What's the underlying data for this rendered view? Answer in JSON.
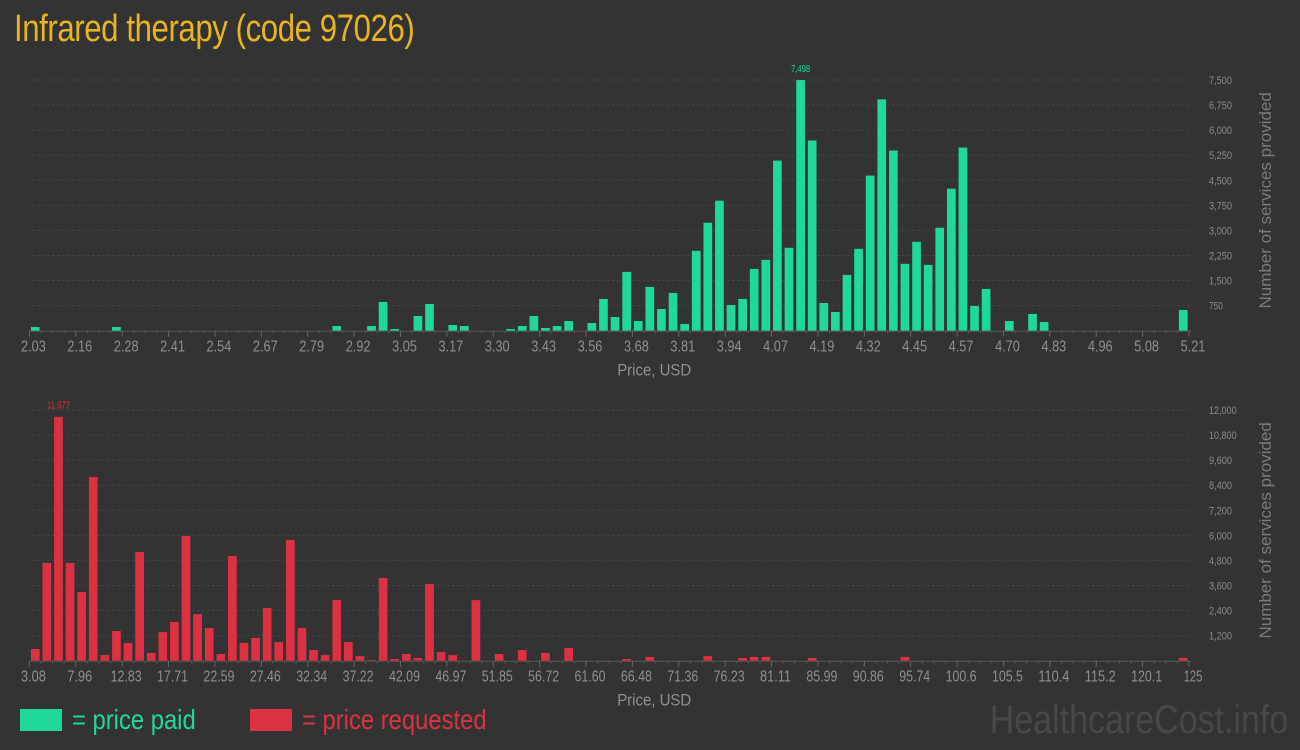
{
  "title": "Infrared therapy (code 97026)",
  "legend": {
    "paid_label": "= price paid",
    "requested_label": "= price requested"
  },
  "watermark": "HealthcareCost.info",
  "colors": {
    "paid": "#1fd899",
    "requested": "#dc3142",
    "title": "#e9b322",
    "background": "#333333"
  },
  "chart_data": [
    {
      "type": "bar",
      "name": "price-paid",
      "xlabel": "Price, USD",
      "ylabel": "Number of services provided",
      "xlim": [
        2.03,
        5.21
      ],
      "bin_count": 100,
      "xtick_labels": [
        "2.03",
        "2.16",
        "2.28",
        "2.41",
        "2.54",
        "2.67",
        "2.79",
        "2.92",
        "3.05",
        "3.17",
        "3.30",
        "3.43",
        "3.56",
        "3.68",
        "3.81",
        "3.94",
        "4.07",
        "4.19",
        "4.32",
        "4.45",
        "4.57",
        "4.70",
        "4.83",
        "4.96",
        "5.08",
        "5.21"
      ],
      "ylim": [
        0,
        7500
      ],
      "yticks": [
        750,
        1500,
        2250,
        3000,
        3750,
        4500,
        5250,
        6000,
        6750,
        7500
      ],
      "ytick_labels": [
        "750",
        "1,500",
        "2,250",
        "3,000",
        "3,750",
        "4,500",
        "5,250",
        "6,000",
        "6,750",
        "7,500"
      ],
      "grid": true,
      "max_label": "7,498",
      "max_bin": 66,
      "values": [
        110,
        0,
        0,
        0,
        0,
        0,
        0,
        110,
        0,
        0,
        0,
        0,
        0,
        0,
        0,
        0,
        0,
        0,
        0,
        0,
        0,
        0,
        0,
        0,
        0,
        0,
        140,
        0,
        0,
        140,
        860,
        50,
        0,
        440,
        800,
        0,
        170,
        140,
        0,
        0,
        0,
        50,
        140,
        440,
        80,
        140,
        290,
        0,
        230,
        950,
        410,
        1760,
        290,
        1310,
        650,
        1130,
        200,
        2390,
        3230,
        3890,
        770,
        950,
        1850,
        2120,
        5090,
        2480,
        7498,
        5690,
        830,
        560,
        1670,
        2450,
        4640,
        6920,
        5390,
        2000,
        2660,
        1970,
        3080,
        4250,
        5480,
        740,
        1250,
        0,
        290,
        0,
        500,
        260,
        0,
        0,
        0,
        0,
        0,
        0,
        0,
        0,
        0,
        0,
        0,
        620
      ]
    },
    {
      "type": "bar",
      "name": "price-requested",
      "xlabel": "Price, USD",
      "ylabel": "Number of services provided",
      "xlim": [
        3.08,
        125
      ],
      "bin_count": 100,
      "xtick_labels": [
        "3.08",
        "7.96",
        "12.83",
        "17.71",
        "22.59",
        "27.46",
        "32.34",
        "37.22",
        "42.09",
        "46.97",
        "51.85",
        "56.72",
        "61.60",
        "66.48",
        "71.36",
        "76.23",
        "81.11",
        "85.99",
        "90.86",
        "95.74",
        "100.6",
        "105.5",
        "110.4",
        "115.2",
        "120.1",
        "125"
      ],
      "ylim": [
        0,
        12000
      ],
      "yticks": [
        1200,
        2400,
        3600,
        4800,
        6000,
        7200,
        8400,
        9600,
        10800,
        12000
      ],
      "ytick_labels": [
        "1,200",
        "2,400",
        "3,600",
        "4,800",
        "6,000",
        "7,200",
        "8,400",
        "9,600",
        "10,800",
        "12,000"
      ],
      "grid": true,
      "max_label": "11,677",
      "max_bin": 2,
      "values": [
        560,
        4680,
        11677,
        4680,
        3290,
        8790,
        270,
        1420,
        850,
        5200,
        370,
        1370,
        1850,
        5970,
        2230,
        1560,
        320,
        5010,
        850,
        1090,
        2520,
        890,
        5780,
        1560,
        510,
        270,
        2900,
        890,
        220,
        30,
        3960,
        80,
        320,
        130,
        3670,
        410,
        270,
        0,
        2900,
        0,
        320,
        0,
        510,
        0,
        370,
        0,
        610,
        0,
        0,
        0,
        0,
        80,
        0,
        180,
        0,
        0,
        0,
        0,
        220,
        0,
        0,
        130,
        180,
        180,
        0,
        0,
        0,
        130,
        0,
        0,
        0,
        0,
        0,
        0,
        0,
        180,
        0,
        0,
        0,
        0,
        0,
        0,
        0,
        0,
        0,
        0,
        0,
        0,
        0,
        0,
        0,
        0,
        0,
        0,
        0,
        0,
        0,
        0,
        0,
        130
      ]
    }
  ]
}
